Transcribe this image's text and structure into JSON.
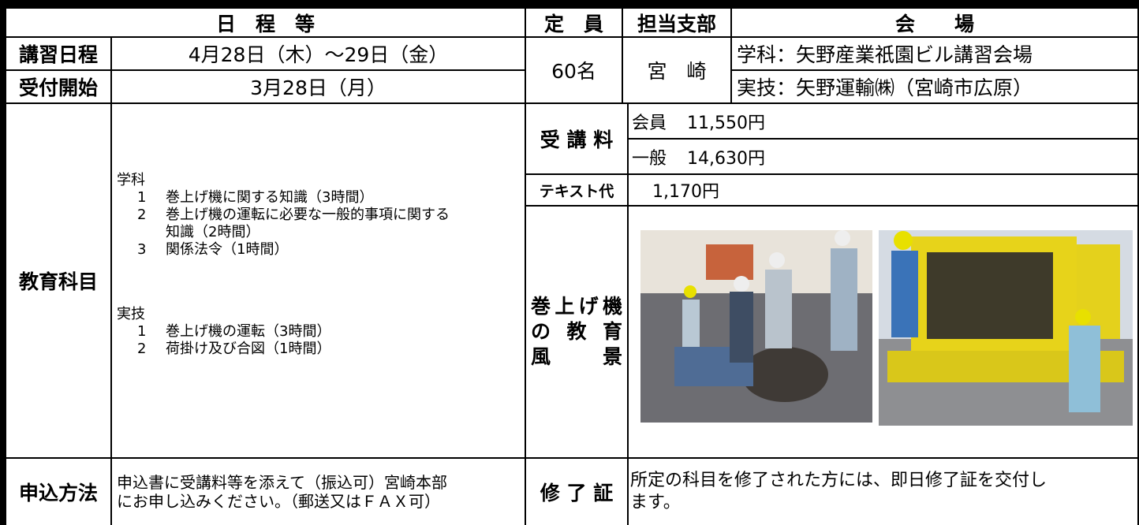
{
  "header": {
    "schedule": "日　程　等",
    "capacity": "定　員",
    "branch": "担当支部",
    "venue": "会　　場"
  },
  "dates": [
    {
      "label": "講習日程",
      "value": "4月28日（木）～29日（金）"
    },
    {
      "label": "受付開始",
      "value": "3月28日（月）"
    }
  ],
  "capacity": "60名",
  "branch": "宮　崎",
  "venues": [
    "学科：矢野産業祇園ビル講習会場",
    "実技：矢野運輸㈱（宮崎市広原）"
  ],
  "subjects": {
    "label": "教育科目",
    "groups": [
      {
        "heading": "学科",
        "items": [
          {
            "num": "1",
            "text": "巻上げ機に関する知識（3時間）"
          },
          {
            "num": "2",
            "text": "巻上げ機の運転に必要な一般的事項に関する",
            "cont": "知識（2時間）"
          },
          {
            "num": "3",
            "text": "関係法令（1時間）"
          }
        ]
      },
      {
        "heading": "実技",
        "items": [
          {
            "num": "1",
            "text": "巻上げ機の運転（3時間）"
          },
          {
            "num": "2",
            "text": "荷掛け及び合図（1時間）"
          }
        ]
      }
    ]
  },
  "fees": {
    "label": "受 講 料",
    "items": [
      {
        "label": "会員",
        "amount": "11,550円"
      },
      {
        "label": "一般",
        "amount": "14,630円"
      }
    ]
  },
  "text_fee": {
    "label": "テキスト代",
    "amount": "1,170円"
  },
  "scene": {
    "lines": [
      "巻上げ機",
      "の 教 育",
      "風　　景"
    ]
  },
  "application": {
    "label": "申込方法",
    "lines": [
      "申込書に受講料等を添えて（振込可）宮崎本部",
      "にお申し込みください。（郵送又はＦＡＸ可）"
    ]
  },
  "certificate": {
    "label": "修 了 証",
    "lines": [
      "所定の科目を修了された方には、即日修了証を交付し",
      "ます。"
    ]
  }
}
